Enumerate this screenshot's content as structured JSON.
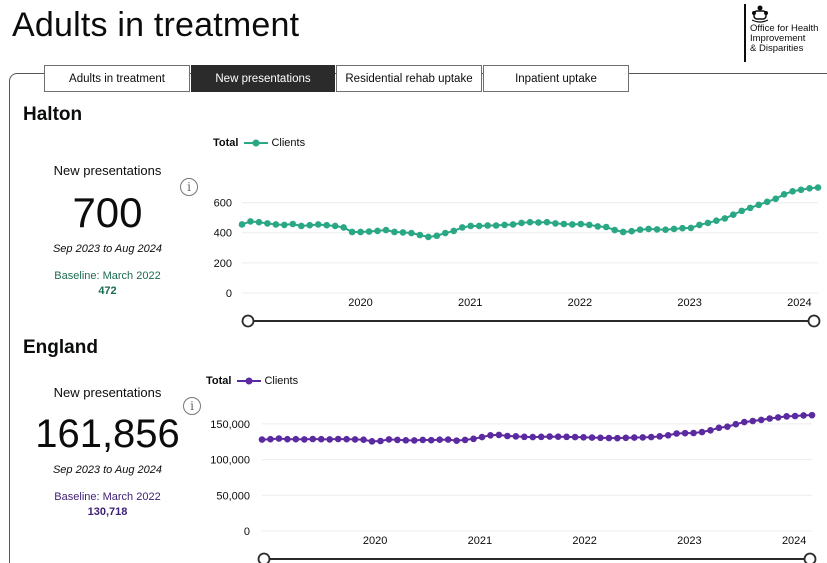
{
  "page": {
    "title": "Adults in treatment"
  },
  "logo": {
    "line1": "Office for Health",
    "line2": "Improvement",
    "line3": "& Disparities"
  },
  "tabs": [
    {
      "label": "Adults in treatment",
      "active": false
    },
    {
      "label": "New presentations",
      "active": true
    },
    {
      "label": "Residential rehab uptake",
      "active": false
    },
    {
      "label": "Inpatient uptake",
      "active": false
    }
  ],
  "regions": [
    {
      "name": "Halton",
      "kpi_label": "New presentations",
      "kpi_value": "700",
      "period": "Sep 2023 to Aug 2024",
      "baseline_label": "Baseline: March 2022",
      "baseline_value": "472",
      "accent": "#2aa784",
      "baseline_color": "#1d6b50"
    },
    {
      "name": "England",
      "kpi_label": "New presentations",
      "kpi_value": "161,856",
      "period": "Sep 2023 to Aug 2024",
      "baseline_label": "Baseline: March 2022",
      "baseline_value": "130,718",
      "accent": "#5b2aa0",
      "baseline_color": "#3d1f73"
    }
  ],
  "info_icon": "i",
  "chart_data": [
    {
      "type": "line",
      "legend_title": "Total",
      "series": [
        {
          "name": "Clients",
          "color": "#2aa784",
          "values": [
            455,
            475,
            470,
            462,
            455,
            452,
            458,
            445,
            450,
            455,
            450,
            445,
            435,
            405,
            405,
            408,
            412,
            418,
            405,
            402,
            398,
            385,
            372,
            380,
            398,
            412,
            435,
            445,
            445,
            448,
            448,
            452,
            455,
            465,
            470,
            468,
            470,
            462,
            458,
            455,
            458,
            452,
            442,
            438,
            418,
            405,
            410,
            420,
            425,
            422,
            420,
            425,
            430,
            432,
            452,
            465,
            480,
            495,
            520,
            545,
            565,
            585,
            605,
            625,
            655,
            675,
            685,
            695,
            700
          ]
        }
      ],
      "x_start": 2019.42,
      "x_end": 2024.67,
      "x_ticks": [
        "2020",
        "2021",
        "2022",
        "2023",
        "2024"
      ],
      "y_ticks": [
        0,
        200,
        400,
        600
      ],
      "ylim": [
        0,
        750
      ]
    },
    {
      "type": "line",
      "legend_title": "Total",
      "series": [
        {
          "name": "Clients",
          "color": "#5b2aa0",
          "values": [
            128000,
            128500,
            129500,
            128500,
            128500,
            128200,
            128800,
            128500,
            128200,
            128800,
            128500,
            128200,
            127800,
            125500,
            126000,
            128200,
            127500,
            127000,
            126800,
            127500,
            127200,
            127800,
            128000,
            126500,
            127500,
            129000,
            131500,
            134000,
            134500,
            133000,
            132500,
            131800,
            131500,
            131800,
            132200,
            132000,
            131800,
            131500,
            131200,
            130800,
            130500,
            130200,
            130000,
            130500,
            130800,
            131000,
            131500,
            132500,
            134000,
            136500,
            137000,
            137200,
            138500,
            141000,
            144500,
            146000,
            149500,
            152500,
            154000,
            155500,
            157500,
            159000,
            160500,
            161000,
            161800,
            162200
          ]
        }
      ],
      "x_start": 2019.42,
      "x_end": 2024.67,
      "x_ticks": [
        "2020",
        "2021",
        "2022",
        "2023",
        "2024"
      ],
      "y_ticks": [
        "0",
        "50,000",
        "100,000",
        "150,000"
      ],
      "y_tick_values": [
        0,
        50000,
        100000,
        150000
      ],
      "ylim": [
        0,
        175000
      ]
    }
  ]
}
